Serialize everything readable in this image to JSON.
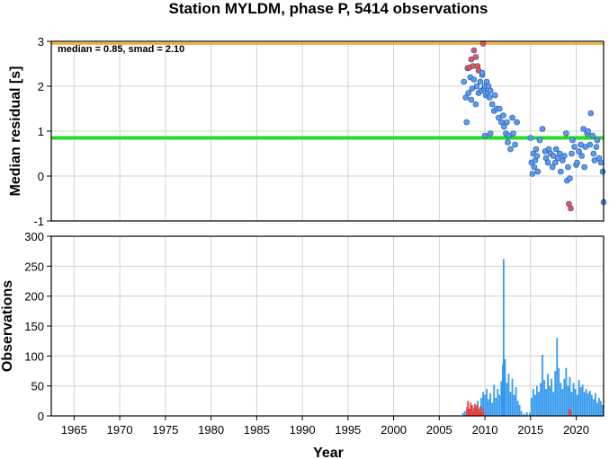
{
  "chart_data": [
    {
      "type": "scatter",
      "title": "Station MYLDM, phase P, 5414 observations",
      "ylabel": "Median residual [s]",
      "xlabel": "",
      "xlim": [
        1962.5,
        2023.0
      ],
      "ylim": [
        -1,
        3
      ],
      "yticks": [
        "-1",
        "0",
        "1",
        "2",
        "3"
      ],
      "grid": true,
      "annotation": "median = 0.85, smad = 2.10",
      "reference_lines": [
        {
          "name": "median",
          "y": 0.85,
          "color": "#22dd22"
        },
        {
          "name": "upper",
          "y": 2.95,
          "color": "#f5a623"
        }
      ],
      "series": [
        {
          "color": "#ef5350",
          "points": [
            [
              2008.1,
              2.4
            ],
            [
              2008.3,
              2.42
            ],
            [
              2008.5,
              2.6
            ],
            [
              2008.7,
              2.45
            ],
            [
              2008.8,
              2.8
            ],
            [
              2009.0,
              2.65
            ],
            [
              2009.2,
              2.45
            ],
            [
              2009.3,
              2.35
            ],
            [
              2009.8,
              2.95
            ],
            [
              2019.2,
              -0.62
            ],
            [
              2019.4,
              -0.72
            ]
          ]
        },
        {
          "color": "#5b9bf0",
          "points": [
            [
              2007.7,
              2.1
            ],
            [
              2007.9,
              1.75
            ],
            [
              2008.0,
              1.2
            ],
            [
              2008.2,
              1.85
            ],
            [
              2008.4,
              2.2
            ],
            [
              2008.5,
              1.7
            ],
            [
              2008.6,
              1.95
            ],
            [
              2008.8,
              2.15
            ],
            [
              2009.0,
              1.6
            ],
            [
              2009.1,
              2.0
            ],
            [
              2009.3,
              1.85
            ],
            [
              2009.5,
              2.1
            ],
            [
              2009.6,
              1.9
            ],
            [
              2009.7,
              2.25
            ],
            [
              2009.9,
              1.95
            ],
            [
              2010.0,
              2.0
            ],
            [
              2010.1,
              1.8
            ],
            [
              2010.2,
              2.1
            ],
            [
              2010.3,
              1.85
            ],
            [
              2010.4,
              2.0
            ],
            [
              2010.5,
              1.75
            ],
            [
              2010.6,
              1.9
            ],
            [
              2010.8,
              1.6
            ],
            [
              2011.0,
              1.45
            ],
            [
              2011.1,
              1.8
            ],
            [
              2011.3,
              1.5
            ],
            [
              2011.5,
              1.3
            ],
            [
              2011.6,
              1.5
            ],
            [
              2011.8,
              1.2
            ],
            [
              2012.0,
              1.35
            ],
            [
              2012.1,
              1.1
            ],
            [
              2012.3,
              0.95
            ],
            [
              2012.4,
              1.2
            ],
            [
              2012.5,
              0.75
            ],
            [
              2012.6,
              0.9
            ],
            [
              2012.8,
              0.6
            ],
            [
              2013.0,
              1.3
            ],
            [
              2013.1,
              0.95
            ],
            [
              2013.3,
              0.7
            ],
            [
              2013.5,
              1.2
            ],
            [
              2010.0,
              0.9
            ],
            [
              2010.6,
              0.95
            ],
            [
              2009.7,
              2.3
            ],
            [
              2015.0,
              0.85
            ],
            [
              2015.1,
              0.3
            ],
            [
              2015.2,
              0.05
            ],
            [
              2015.3,
              0.5
            ],
            [
              2015.4,
              0.2
            ],
            [
              2015.5,
              0.35
            ],
            [
              2015.6,
              0.6
            ],
            [
              2015.7,
              0.45
            ],
            [
              2015.8,
              0.1
            ],
            [
              2016.0,
              0.8
            ],
            [
              2016.3,
              1.05
            ],
            [
              2016.6,
              0.55
            ],
            [
              2016.7,
              0.4
            ],
            [
              2016.9,
              0.3
            ],
            [
              2017.0,
              0.6
            ],
            [
              2017.2,
              0.5
            ],
            [
              2017.4,
              0.2
            ],
            [
              2017.5,
              0.45
            ],
            [
              2017.7,
              0.3
            ],
            [
              2017.8,
              0.6
            ],
            [
              2018.0,
              0.4
            ],
            [
              2018.2,
              0.5
            ],
            [
              2018.3,
              0.1
            ],
            [
              2018.5,
              0.35
            ],
            [
              2018.7,
              0.45
            ],
            [
              2018.9,
              0.95
            ],
            [
              2019.0,
              -0.1
            ],
            [
              2019.1,
              0.2
            ],
            [
              2019.3,
              -0.05
            ],
            [
              2019.5,
              0.5
            ],
            [
              2019.6,
              0.8
            ],
            [
              2019.8,
              0.65
            ],
            [
              2020.0,
              0.25
            ],
            [
              2020.1,
              0.3
            ],
            [
              2020.3,
              0.55
            ],
            [
              2020.5,
              0.7
            ],
            [
              2020.6,
              0.45
            ],
            [
              2020.8,
              1.05
            ],
            [
              2020.9,
              0.2
            ],
            [
              2021.0,
              0.65
            ],
            [
              2021.2,
              0.95
            ],
            [
              2021.3,
              1.0
            ],
            [
              2021.5,
              0.7
            ],
            [
              2021.6,
              1.4
            ],
            [
              2021.8,
              0.9
            ],
            [
              2021.9,
              0.5
            ],
            [
              2022.0,
              0.35
            ],
            [
              2022.2,
              0.65
            ],
            [
              2022.3,
              0.8
            ],
            [
              2022.5,
              0.4
            ],
            [
              2022.7,
              0.3
            ],
            [
              2022.9,
              0.1
            ],
            [
              2023.0,
              -0.58
            ]
          ]
        }
      ]
    },
    {
      "type": "bar",
      "ylabel": "Observations",
      "xlabel": "Year",
      "xlim": [
        1962.5,
        2023.0
      ],
      "ylim": [
        0,
        300
      ],
      "yticks": [
        "0",
        "50",
        "100",
        "150",
        "200",
        "250",
        "300"
      ],
      "xticks": [
        "1965",
        "1970",
        "1975",
        "1980",
        "1985",
        "1990",
        "1995",
        "2000",
        "2005",
        "2010",
        "2015",
        "2020"
      ],
      "grid": true,
      "series": [
        {
          "color": "#ef3b3b",
          "points": [
            [
              2008.05,
              15
            ],
            [
              2008.15,
              25
            ],
            [
              2008.3,
              12
            ],
            [
              2008.45,
              22
            ],
            [
              2008.6,
              18
            ],
            [
              2008.75,
              8
            ],
            [
              2008.9,
              20
            ],
            [
              2009.05,
              14
            ],
            [
              2009.2,
              18
            ],
            [
              2009.35,
              10
            ],
            [
              2009.5,
              16
            ],
            [
              2009.65,
              6
            ],
            [
              2009.8,
              12
            ],
            [
              2019.25,
              12
            ],
            [
              2019.4,
              8
            ]
          ]
        },
        {
          "color": "#3399ee",
          "points": [
            [
              2007.6,
              5
            ],
            [
              2007.8,
              8
            ],
            [
              2008.0,
              10
            ],
            [
              2008.2,
              6
            ],
            [
              2008.4,
              12
            ],
            [
              2008.6,
              7
            ],
            [
              2008.8,
              14
            ],
            [
              2009.0,
              18
            ],
            [
              2009.2,
              25
            ],
            [
              2009.4,
              12
            ],
            [
              2009.6,
              30
            ],
            [
              2009.8,
              40
            ],
            [
              2010.0,
              35
            ],
            [
              2010.2,
              45
            ],
            [
              2010.4,
              28
            ],
            [
              2010.6,
              38
            ],
            [
              2010.8,
              22
            ],
            [
              2011.0,
              52
            ],
            [
              2011.2,
              30
            ],
            [
              2011.4,
              45
            ],
            [
              2011.6,
              35
            ],
            [
              2011.8,
              58
            ],
            [
              2011.95,
              85
            ],
            [
              2012.05,
              262
            ],
            [
              2012.2,
              95
            ],
            [
              2012.4,
              55
            ],
            [
              2012.6,
              70
            ],
            [
              2012.8,
              40
            ],
            [
              2013.0,
              62
            ],
            [
              2013.2,
              35
            ],
            [
              2013.4,
              48
            ],
            [
              2013.6,
              25
            ],
            [
              2013.8,
              18
            ],
            [
              2014.0,
              8
            ],
            [
              2014.3,
              4
            ],
            [
              2014.6,
              6
            ],
            [
              2014.9,
              5
            ],
            [
              2015.1,
              30
            ],
            [
              2015.3,
              45
            ],
            [
              2015.5,
              35
            ],
            [
              2015.7,
              50
            ],
            [
              2015.9,
              40
            ],
            [
              2016.1,
              55
            ],
            [
              2016.3,
              102
            ],
            [
              2016.5,
              60
            ],
            [
              2016.7,
              45
            ],
            [
              2016.9,
              70
            ],
            [
              2017.1,
              50
            ],
            [
              2017.3,
              62
            ],
            [
              2017.5,
              40
            ],
            [
              2017.7,
              75
            ],
            [
              2017.9,
              130
            ],
            [
              2018.1,
              80
            ],
            [
              2018.3,
              55
            ],
            [
              2018.5,
              45
            ],
            [
              2018.7,
              62
            ],
            [
              2018.9,
              80
            ],
            [
              2019.1,
              50
            ],
            [
              2019.3,
              65
            ],
            [
              2019.5,
              40
            ],
            [
              2019.7,
              55
            ],
            [
              2019.9,
              45
            ],
            [
              2020.1,
              35
            ],
            [
              2020.3,
              60
            ],
            [
              2020.5,
              48
            ],
            [
              2020.7,
              52
            ],
            [
              2020.9,
              40
            ],
            [
              2021.1,
              45
            ],
            [
              2021.3,
              38
            ],
            [
              2021.5,
              42
            ],
            [
              2021.7,
              35
            ],
            [
              2021.9,
              28
            ],
            [
              2022.1,
              38
            ],
            [
              2022.3,
              22
            ],
            [
              2022.5,
              30
            ],
            [
              2022.7,
              25
            ],
            [
              2022.9,
              18
            ]
          ]
        }
      ]
    }
  ]
}
